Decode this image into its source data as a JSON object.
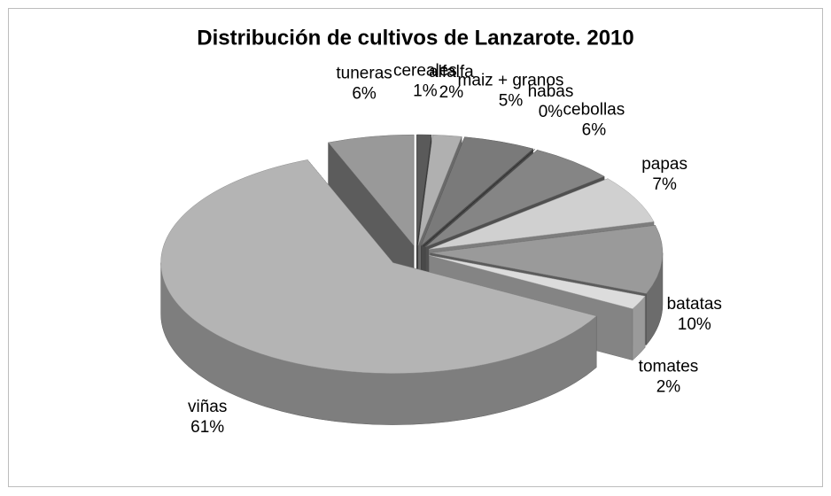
{
  "chart_data": {
    "type": "pie",
    "title": "Distribución de cultivos de Lanzarote. 2010",
    "categories": [
      "cereales",
      "alfalfa",
      "maiz + granos",
      "habas",
      "cebollas",
      "papas",
      "batatas",
      "tomates",
      "viñas",
      "tuneras"
    ],
    "values": [
      1,
      2,
      5,
      0,
      6,
      7,
      10,
      2,
      61,
      6
    ],
    "value_labels": [
      "1%",
      "2%",
      "5%",
      "0%",
      "6%",
      "7%",
      "10%",
      "2%",
      "61%",
      "6%"
    ],
    "colors": [
      "#5a5a5a",
      "#b0b0b0",
      "#7a7a7a",
      "#2a2a2a",
      "#858585",
      "#d0d0d0",
      "#9a9a9a",
      "#dcdcdc",
      "#b4b4b4",
      "#999999"
    ],
    "legend": false
  }
}
